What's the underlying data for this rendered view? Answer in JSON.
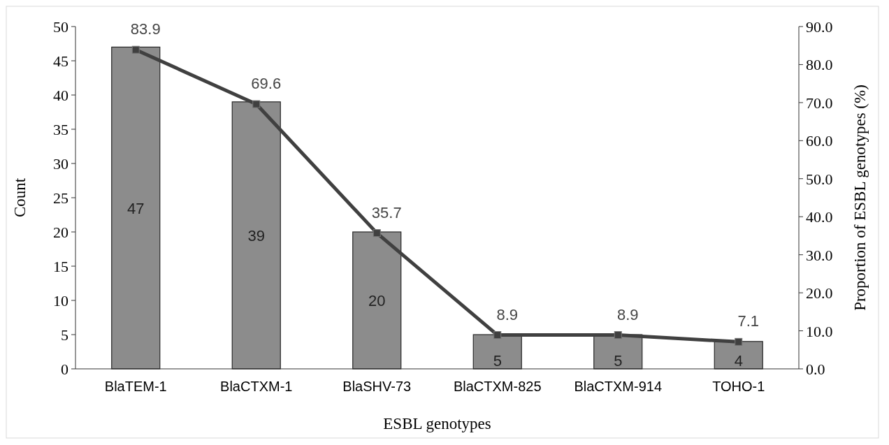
{
  "chart_data": {
    "type": "bar",
    "xlabel": "ESBL genotypes",
    "ylabel": "Count",
    "y2label": "Proportion of ESBL genotypes (%)",
    "categories": [
      "BlaTEM-1",
      "BlaCTXM-1",
      "BlaSHV-73",
      "BlaCTXM-825",
      "BlaCTXM-914",
      "TOHO-1"
    ],
    "series": [
      {
        "color": "#8c8c8c",
        "values": [
          47,
          39,
          20,
          5,
          5,
          4
        ]
      },
      {
        "type": "line",
        "axis": "y2",
        "color": "#404040",
        "values": [
          83.9,
          69.6,
          35.7,
          8.9,
          8.9,
          7.1
        ],
        "value_labels": [
          "83.9",
          "69.6",
          "35.7",
          "8.9",
          "8.9",
          "7.1"
        ]
      }
    ],
    "ylim": [
      0,
      50
    ],
    "yticks": [
      0,
      5,
      10,
      15,
      20,
      25,
      30,
      35,
      40,
      45,
      50
    ],
    "y2lim": [
      0,
      90
    ],
    "y2ticks": [
      {
        "value": 0,
        "label": "0.0"
      },
      {
        "value": 10,
        "label": "10.0"
      },
      {
        "value": 20,
        "label": "20.0"
      },
      {
        "value": 30,
        "label": "30.0"
      },
      {
        "value": 40,
        "label": "40.0"
      },
      {
        "value": 50,
        "label": "50.0"
      },
      {
        "value": 60,
        "label": "60.0"
      },
      {
        "value": 70,
        "label": "70.0"
      },
      {
        "value": 80,
        "label": "80.0"
      },
      {
        "value": 90,
        "label": "90.0"
      }
    ],
    "data_labels": true,
    "marker": "square",
    "line_style": "solid",
    "grid": false
  }
}
